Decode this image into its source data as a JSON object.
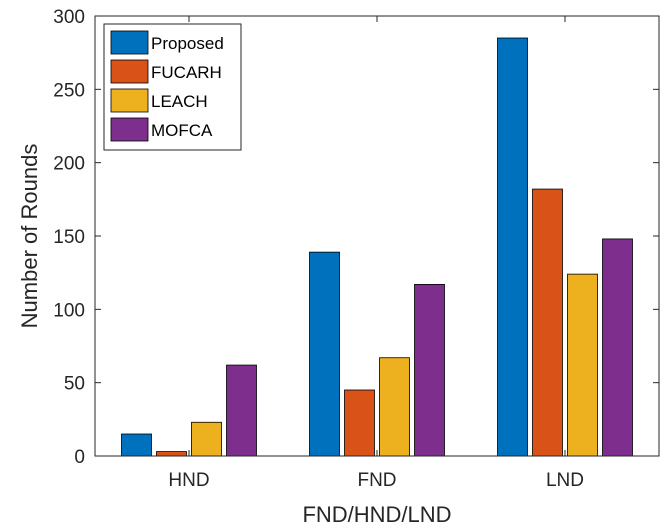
{
  "chart_data": {
    "type": "bar",
    "title": "",
    "xlabel": "FND/HND/LND",
    "ylabel": "Number of Rounds",
    "categories": [
      "HND",
      "FND",
      "LND"
    ],
    "ylim": [
      0,
      300
    ],
    "yticks": [
      0,
      50,
      100,
      150,
      200,
      250,
      300
    ],
    "grid": false,
    "legend_position": "top-left",
    "series": [
      {
        "name": "Proposed",
        "color": "#0072BD",
        "values": [
          15,
          139,
          285
        ]
      },
      {
        "name": "FUCARH",
        "color": "#D95319",
        "values": [
          3,
          45,
          182
        ]
      },
      {
        "name": "LEACH",
        "color": "#EDB120",
        "values": [
          23,
          67,
          124
        ]
      },
      {
        "name": "MOFCA",
        "color": "#7E2F8E",
        "values": [
          62,
          117,
          148
        ]
      }
    ]
  }
}
